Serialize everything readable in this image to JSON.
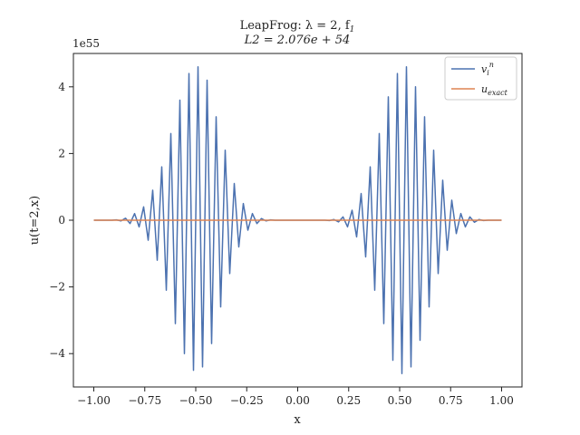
{
  "chart_data": {
    "type": "line",
    "title_line1": "LeapFrog: λ = 2, f",
    "title_line1_sub": "1",
    "title_line2": "L2 = 2.076e + 54",
    "xlabel": "x",
    "ylabel": "u(t=2,x)",
    "y_offset_label": "1e55",
    "xlim": [
      -1.1,
      1.1
    ],
    "ylim": [
      -5.0,
      5.0
    ],
    "xticks": [
      -1.0,
      -0.75,
      -0.5,
      -0.25,
      0.0,
      0.25,
      0.5,
      0.75,
      1.0
    ],
    "xtick_labels": [
      "−1.00",
      "−0.75",
      "−0.50",
      "−0.25",
      "0.00",
      "0.25",
      "0.50",
      "0.75",
      "1.00"
    ],
    "yticks": [
      -4,
      -2,
      0,
      2,
      4
    ],
    "ytick_labels": [
      "−4",
      "−2",
      "0",
      "2",
      "4"
    ],
    "grid": false,
    "legend_position": "upper-right",
    "legend": [
      {
        "label_main": "v",
        "label_sub": "i",
        "label_sup": "n"
      },
      {
        "label_main": "u",
        "label_sub": "exact"
      }
    ],
    "series": [
      {
        "color": "#4c72b0",
        "x": [
          -1.0,
          -0.9778,
          -0.9556,
          -0.9333,
          -0.9111,
          -0.8889,
          -0.8667,
          -0.8444,
          -0.8222,
          -0.8,
          -0.7778,
          -0.7556,
          -0.7333,
          -0.7111,
          -0.6889,
          -0.6667,
          -0.6444,
          -0.6222,
          -0.6,
          -0.5778,
          -0.5556,
          -0.5333,
          -0.5111,
          -0.4889,
          -0.4667,
          -0.4444,
          -0.4222,
          -0.4,
          -0.3778,
          -0.3556,
          -0.3333,
          -0.3111,
          -0.2889,
          -0.2667,
          -0.2444,
          -0.2222,
          -0.2,
          -0.1778,
          -0.1556,
          -0.1333,
          -0.1111,
          -0.0889,
          -0.0667,
          -0.0444,
          -0.0222,
          0.0,
          0.0222,
          0.0444,
          0.0667,
          0.0889,
          0.1111,
          0.1333,
          0.1556,
          0.1778,
          0.2,
          0.2222,
          0.2444,
          0.2667,
          0.2889,
          0.3111,
          0.3333,
          0.3556,
          0.3778,
          0.4,
          0.4222,
          0.4444,
          0.4667,
          0.4889,
          0.5111,
          0.5333,
          0.5556,
          0.5778,
          0.6,
          0.6222,
          0.6444,
          0.6667,
          0.6889,
          0.7111,
          0.7333,
          0.7556,
          0.7778,
          0.8,
          0.8222,
          0.8444,
          0.8667,
          0.8889,
          0.9111,
          0.9333,
          0.9556,
          0.9778,
          1.0
        ],
        "y": [
          0.0,
          0.0,
          0.0,
          0.0,
          0.0,
          0.01,
          -0.02,
          0.06,
          -0.1,
          0.2,
          -0.2,
          0.4,
          -0.6,
          0.9,
          -1.2,
          1.6,
          -2.1,
          2.6,
          -3.1,
          3.6,
          -4.0,
          4.4,
          -4.5,
          4.6,
          -4.4,
          4.2,
          -3.7,
          3.1,
          -2.6,
          2.1,
          -1.6,
          1.1,
          -0.8,
          0.5,
          -0.3,
          0.2,
          -0.1,
          0.05,
          -0.02,
          0.01,
          0.0,
          0.0,
          0.0,
          0.0,
          0.0,
          0.0,
          0.0,
          0.0,
          0.0,
          0.0,
          0.0,
          0.0,
          -0.01,
          0.02,
          -0.05,
          0.1,
          -0.2,
          0.3,
          -0.5,
          0.8,
          -1.1,
          1.6,
          -2.1,
          2.6,
          -3.1,
          3.7,
          -4.2,
          4.4,
          -4.6,
          4.6,
          -4.4,
          4.0,
          -3.6,
          3.1,
          -2.6,
          2.1,
          -1.6,
          1.2,
          -0.9,
          0.6,
          -0.4,
          0.2,
          -0.2,
          0.1,
          -0.06,
          0.02,
          -0.01,
          0.0,
          0.0,
          0.0,
          0.0
        ]
      },
      {
        "color": "#dd8452",
        "x": [
          -1.0,
          1.0
        ],
        "y": [
          0.0,
          0.0
        ]
      }
    ]
  }
}
